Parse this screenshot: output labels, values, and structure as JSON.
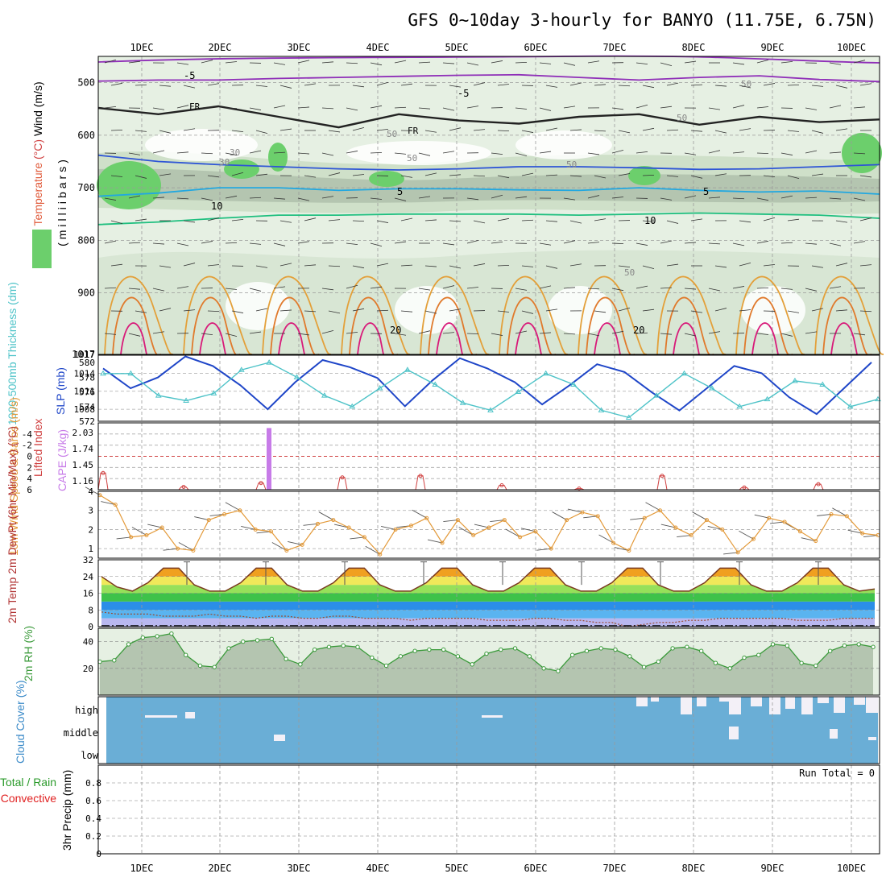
{
  "title": "GFS 0~10day 3-hourly for BANYO (11.75E, 6.75N)",
  "colors": {
    "rh_light": "#e6f0e3",
    "rh_mid": "#cfe0c9",
    "rh_dark": "#b4c5b0",
    "rh_green": "#6ccf6c",
    "isotherm_purple": "#8f2fb8",
    "isotherm_blue": "#2e55d6",
    "isotherm_cyan": "#22a8e0",
    "isotherm_green": "#1fbf7f",
    "isotherm_orange": "#e3a03a",
    "isotherm_darkorange": "#e07a2c",
    "isotherm_magenta": "#d81b7a",
    "slp": "#1f46c8",
    "thickness": "#4ec3c8",
    "lifted_index": "#d04040",
    "cape": "#c77be8",
    "wind10m": "#e39a3a",
    "rh2m": "#3a9a3a",
    "cloud": "#6aaed6",
    "cloud_gap": "#f3f0f7"
  },
  "chart_data": [
    {
      "type": "heatmap",
      "panel": "upper-air",
      "title": "GFS 0~10day 3-hourly for BANYO (11.75E, 6.75N)",
      "x_labels": [
        "1DEC",
        "2DEC",
        "3DEC",
        "4DEC",
        "5DEC",
        "6DEC",
        "7DEC",
        "8DEC",
        "9DEC",
        "10DEC"
      ],
      "ylabel": "(milliibars)",
      "ylabel_parts": [
        "RH (%)",
        "Temperature",
        "(°C)",
        "Wind",
        "(m/s)"
      ],
      "y_ticks": [
        "500",
        "600",
        "700",
        "800",
        "900",
        "1017"
      ],
      "ylim": [
        450,
        1017
      ],
      "y_scale": "reversed",
      "contour_labels": [
        "-5",
        "-5",
        "FR",
        "FR",
        "5",
        "5",
        "10",
        "10",
        "20",
        "20",
        "30",
        "30",
        "50",
        "50",
        "50",
        "50",
        "50",
        "50"
      ],
      "isotherms": [
        {
          "name": "-5",
          "pressure": [
            497,
            495,
            495,
            492,
            490,
            488,
            486,
            485,
            490,
            495,
            490,
            487,
            494,
            498
          ]
        },
        {
          "name": "FR",
          "pressure": [
            548,
            560,
            545,
            565,
            585,
            560,
            572,
            578,
            565,
            560,
            580,
            565,
            575,
            570
          ]
        },
        {
          "name": "5",
          "pressure": [
            638,
            650,
            656,
            660,
            664,
            666,
            664,
            660,
            660,
            662,
            665,
            664,
            660,
            656
          ]
        },
        {
          "name": "10",
          "pressure": [
            716,
            710,
            700,
            700,
            705,
            702,
            702,
            704,
            705,
            700,
            705,
            708,
            706,
            712
          ]
        },
        {
          "name": "15",
          "pressure": [
            770,
            765,
            758,
            752,
            752,
            750,
            750,
            750,
            752,
            750,
            748,
            750,
            752,
            758
          ]
        }
      ]
    },
    {
      "type": "line",
      "panel": "slp-thickness",
      "ylabel_left": "1000-500mb Thickness (dm)",
      "ylabel_right": "SLP (mb)",
      "y_ticks_left": [
        "580",
        "578",
        "576",
        "574",
        "572"
      ],
      "y_ticks_right": [
        "1014",
        "1011",
        "1008"
      ],
      "ylim_thickness": [
        572,
        581
      ],
      "ylim_slp": [
        1006,
        1017
      ],
      "series": [
        {
          "name": "SLP (mb)",
          "values": [
            1014.8,
            1011.5,
            1013.3,
            1016.8,
            1015.2,
            1012.0,
            1008.0,
            1012.5,
            1016.2,
            1015.0,
            1013.2,
            1008.5,
            1012.8,
            1016.5,
            1014.8,
            1012.5,
            1008.8,
            1012.0,
            1015.5,
            1014.2,
            1010.8,
            1007.8,
            1011.5,
            1015.2,
            1014.0,
            1010.0,
            1007.2,
            1011.5,
            1015.8
          ]
        },
        {
          "name": "1000-500mb Thickness (dm)",
          "values": [
            578.5,
            578.5,
            575.5,
            574.8,
            575.8,
            579.0,
            580.0,
            578.0,
            575.5,
            574.0,
            576.5,
            579.0,
            577.0,
            574.5,
            573.5,
            576.0,
            578.5,
            577.0,
            573.5,
            572.5,
            575.5,
            578.5,
            576.5,
            574.0,
            575.0,
            577.5,
            577.0,
            574.0,
            575.0
          ]
        }
      ]
    },
    {
      "type": "bar",
      "panel": "lifted-cape",
      "ylabel_left": "Lifted Index",
      "ylabel_right": "CAPE (J/kg)",
      "y_ticks_left": [
        "-4",
        "-2",
        "0",
        "2",
        "4",
        "6"
      ],
      "y_ticks_right": [
        "2.03",
        "1.74",
        "1.45",
        "1.16"
      ],
      "ylim_lifted": [
        -6,
        6
      ],
      "ylim_cape": [
        0,
        2.2
      ],
      "categories": [
        "1DEC",
        "2DEC",
        "3DEC",
        "4DEC",
        "5DEC",
        "6DEC",
        "7DEC",
        "8DEC",
        "9DEC",
        "10DEC"
      ],
      "series": [
        {
          "name": "CAPE (J/kg)",
          "values": [
            0,
            0,
            2.03,
            0,
            0,
            0,
            0,
            0,
            0,
            0
          ]
        },
        {
          "name": "Lifted Index",
          "values": [
            3.0,
            5.5,
            4.8,
            3.8,
            3.5,
            5.2,
            5.8,
            3.5,
            5.6,
            5.0
          ]
        }
      ]
    },
    {
      "type": "line",
      "panel": "wind10m",
      "ylabel": "10m Wind Speed & Barbs (m/s)",
      "y_ticks": [
        "4",
        "3",
        "2",
        "1"
      ],
      "ylim": [
        0.5,
        4
      ],
      "series": [
        {
          "name": "10m Wind Speed",
          "values": [
            3.8,
            3.3,
            1.6,
            1.7,
            2.1,
            1.0,
            0.9,
            2.5,
            2.8,
            3.0,
            2.0,
            1.9,
            0.9,
            1.2,
            2.3,
            2.5,
            2.1,
            1.6,
            0.7,
            2.0,
            2.2,
            2.6,
            1.3,
            2.5,
            1.7,
            2.1,
            2.5,
            1.6,
            1.9,
            1.0,
            2.5,
            2.9,
            2.7,
            1.3,
            0.9,
            2.6,
            3.0,
            2.1,
            1.7,
            2.5,
            2.0,
            0.8,
            1.5,
            2.6,
            2.4,
            1.9,
            1.4,
            2.8,
            2.7,
            1.8,
            1.7
          ]
        }
      ]
    },
    {
      "type": "area",
      "panel": "temperature",
      "ylabel": "2m Temp 2m DewPt (6hr Min/Max) (°C)",
      "y_ticks": [
        "32",
        "24",
        "16",
        "8",
        "0"
      ],
      "ylim": [
        0,
        32
      ],
      "series": [
        {
          "name": "2m Temp",
          "values": [
            24,
            19,
            17,
            21,
            28,
            28,
            20,
            17,
            17,
            21,
            28,
            28,
            20,
            17,
            17,
            21,
            28,
            28,
            20,
            17,
            17,
            21,
            28,
            28,
            20,
            17,
            17,
            21,
            28,
            28,
            20,
            17,
            17,
            21,
            28,
            28,
            20,
            17,
            17,
            21,
            28,
            28,
            20,
            17,
            17,
            21,
            28,
            28,
            20,
            17,
            18
          ]
        },
        {
          "name": "2m DewPt",
          "values": [
            7,
            6,
            6,
            6,
            5,
            5,
            5,
            6,
            5,
            5,
            4,
            5,
            5,
            4,
            4,
            5,
            5,
            4,
            4,
            4,
            3,
            4,
            4,
            4,
            4,
            3,
            3,
            3,
            4,
            4,
            3,
            3,
            2,
            2,
            0,
            1,
            2,
            2,
            3,
            3,
            4,
            4,
            4,
            4,
            4,
            3,
            3,
            3,
            4,
            4,
            4
          ]
        }
      ]
    },
    {
      "type": "area",
      "panel": "rh2m",
      "ylabel": "2m RH (%)",
      "y_ticks": [
        "40",
        "20"
      ],
      "ylim": [
        0,
        50
      ],
      "series": [
        {
          "name": "2m RH",
          "values": [
            25,
            26,
            38,
            43,
            44,
            46,
            30,
            22,
            21,
            35,
            40,
            41,
            42,
            27,
            23,
            34,
            36,
            37,
            36,
            28,
            22,
            29,
            33,
            34,
            34,
            29,
            23,
            31,
            34,
            35,
            29,
            20,
            18,
            30,
            33,
            35,
            34,
            29,
            21,
            25,
            35,
            36,
            33,
            24,
            20,
            28,
            30,
            38,
            37,
            24,
            22,
            33,
            37,
            38,
            36
          ]
        }
      ]
    },
    {
      "type": "heatmap",
      "panel": "cloud-cover",
      "ylabel": "Cloud Cover (%)",
      "rows": [
        "high",
        "middle",
        "low"
      ],
      "note": "Mostly full cover throughout; gaps in high cloud from 7DEC onward"
    },
    {
      "type": "bar",
      "panel": "precip",
      "ylabel": "3hr Precip (mm)",
      "legend_left": [
        "Total / Rain",
        "Convective"
      ],
      "y_ticks": [
        "0.8",
        "0.6",
        "0.4",
        "0.2",
        "0"
      ],
      "ylim": [
        0,
        1
      ],
      "run_total_label": "Run Total = 0",
      "values": []
    }
  ]
}
